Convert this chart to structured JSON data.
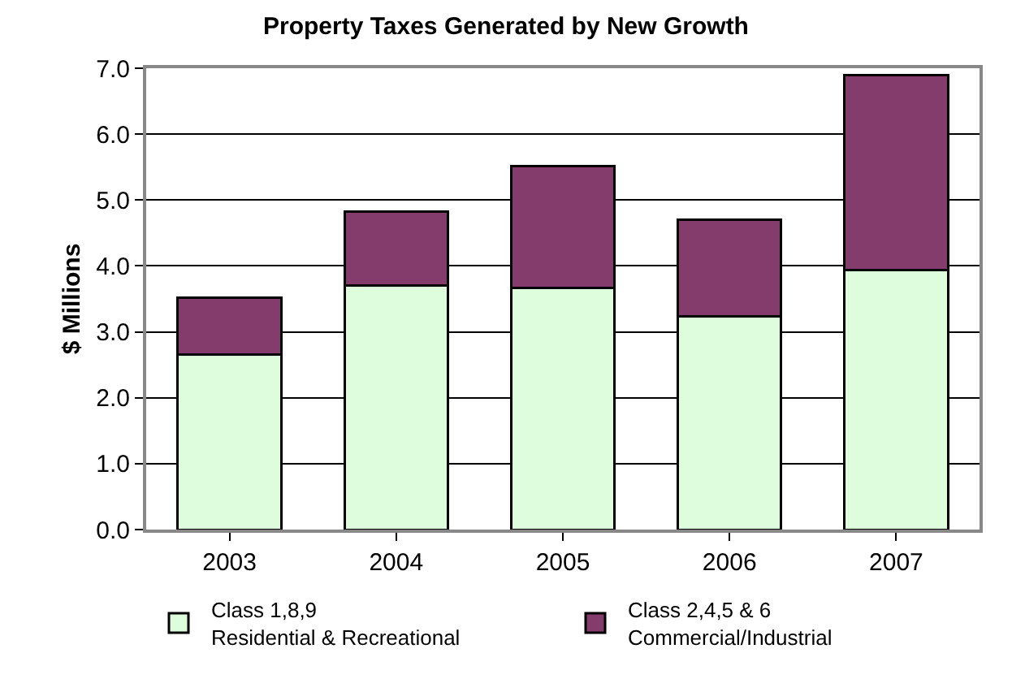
{
  "chart_data": {
    "type": "bar",
    "title": "Property Taxes Generated by New Growth",
    "ylabel": "$ Millions",
    "categories": [
      "2003",
      "2004",
      "2005",
      "2006",
      "2007"
    ],
    "stacked": true,
    "series": [
      {
        "name": "Class 1,8,9\nResidential & Recreational",
        "color": "#ddfddd",
        "values": [
          2.65,
          3.7,
          3.67,
          3.24,
          3.94
        ]
      },
      {
        "name": "Class 2,4,5 & 6\nCommercial/Industrial",
        "color": "#843c6c",
        "values": [
          0.87,
          1.13,
          1.84,
          1.46,
          2.96
        ]
      }
    ],
    "ylim": [
      0,
      7
    ],
    "yticks": [
      {
        "value": 0,
        "label": "0.0"
      },
      {
        "value": 1,
        "label": "1.0"
      },
      {
        "value": 2,
        "label": "2.0"
      },
      {
        "value": 3,
        "label": "3.0"
      },
      {
        "value": 4,
        "label": "4.0"
      },
      {
        "value": 5,
        "label": "5.0"
      },
      {
        "value": 6,
        "label": "6.0"
      },
      {
        "value": 7,
        "label": "7.0"
      }
    ],
    "grid": "y",
    "legend": "bottom"
  }
}
